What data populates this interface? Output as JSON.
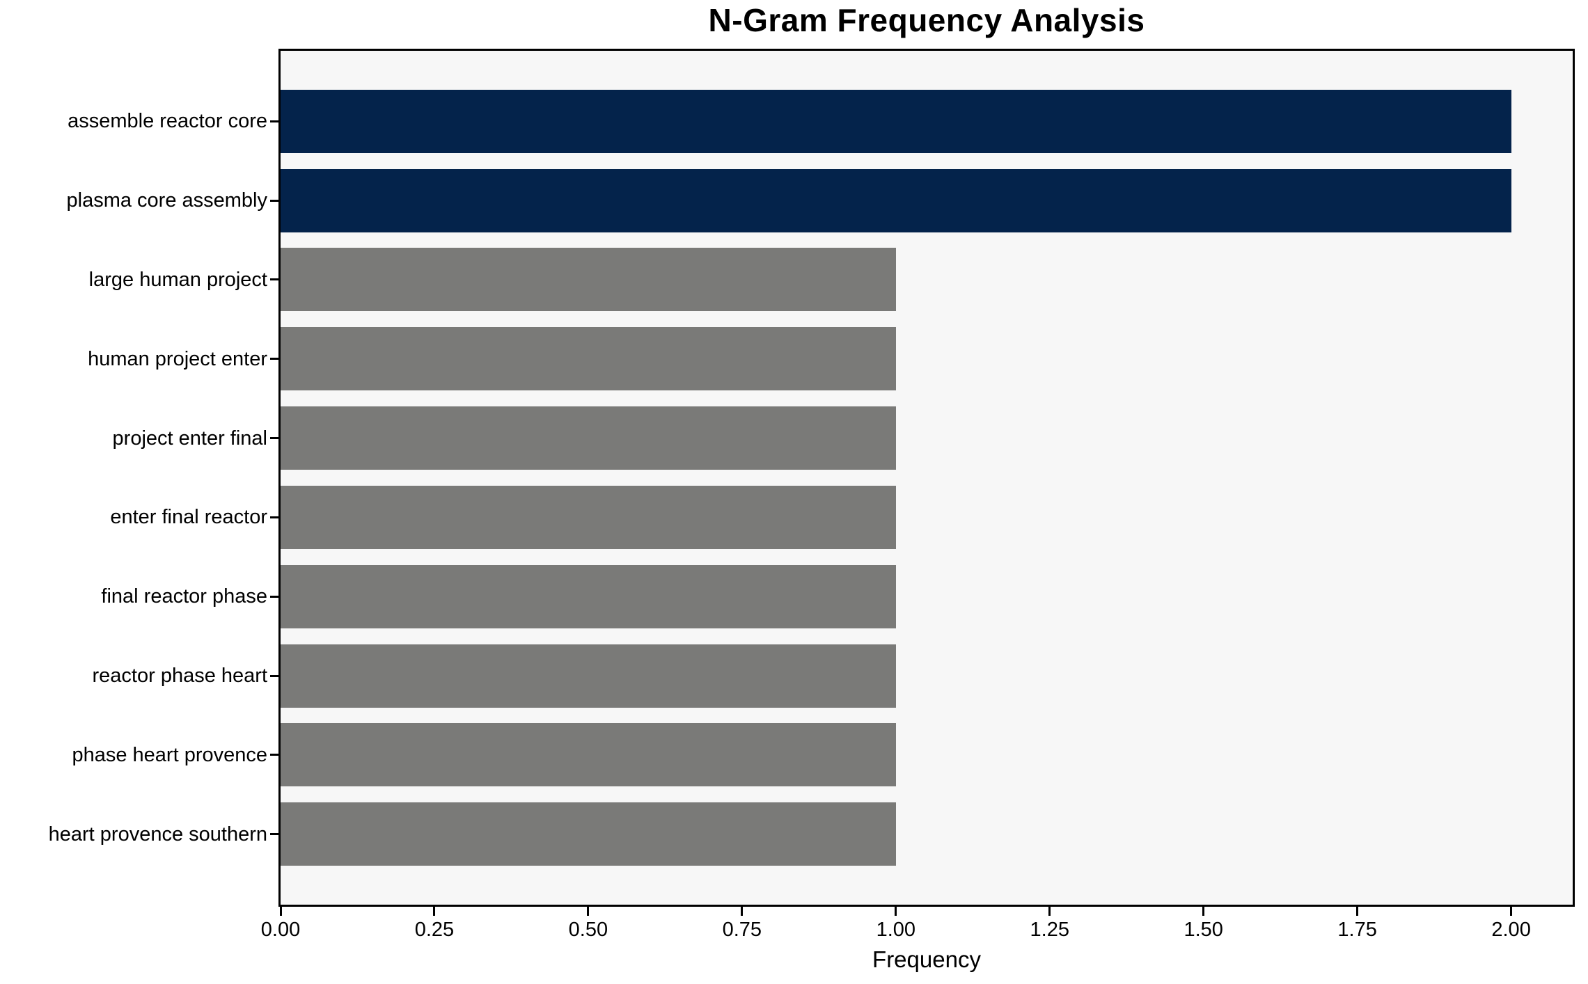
{
  "chart_data": {
    "type": "bar",
    "orientation": "horizontal",
    "title": "N-Gram Frequency Analysis",
    "xlabel": "Frequency",
    "ylabel": "",
    "categories": [
      "assemble reactor core",
      "plasma core assembly",
      "large human project",
      "human project enter",
      "project enter final",
      "enter final reactor",
      "final reactor phase",
      "reactor phase heart",
      "phase heart provence",
      "heart provence southern"
    ],
    "values": [
      2,
      2,
      1,
      1,
      1,
      1,
      1,
      1,
      1,
      1
    ],
    "bar_colors": [
      "#04234b",
      "#04234b",
      "#7a7a78",
      "#7a7a78",
      "#7a7a78",
      "#7a7a78",
      "#7a7a78",
      "#7a7a78",
      "#7a7a78",
      "#7a7a78"
    ],
    "xlim": [
      0,
      2.1
    ],
    "xticks": [
      {
        "value": 0.0,
        "label": "0.00"
      },
      {
        "value": 0.25,
        "label": "0.25"
      },
      {
        "value": 0.5,
        "label": "0.50"
      },
      {
        "value": 0.75,
        "label": "0.75"
      },
      {
        "value": 1.0,
        "label": "1.00"
      },
      {
        "value": 1.25,
        "label": "1.25"
      },
      {
        "value": 1.5,
        "label": "1.50"
      },
      {
        "value": 1.75,
        "label": "1.75"
      },
      {
        "value": 2.0,
        "label": "2.00"
      }
    ],
    "grid": false,
    "legend": null,
    "colors": {
      "highlight_bar": "#04234b",
      "default_bar": "#7a7a78",
      "plot_background": "#f7f7f7",
      "page_background": "#ffffff",
      "spine": "#000000",
      "text": "#000000"
    }
  }
}
